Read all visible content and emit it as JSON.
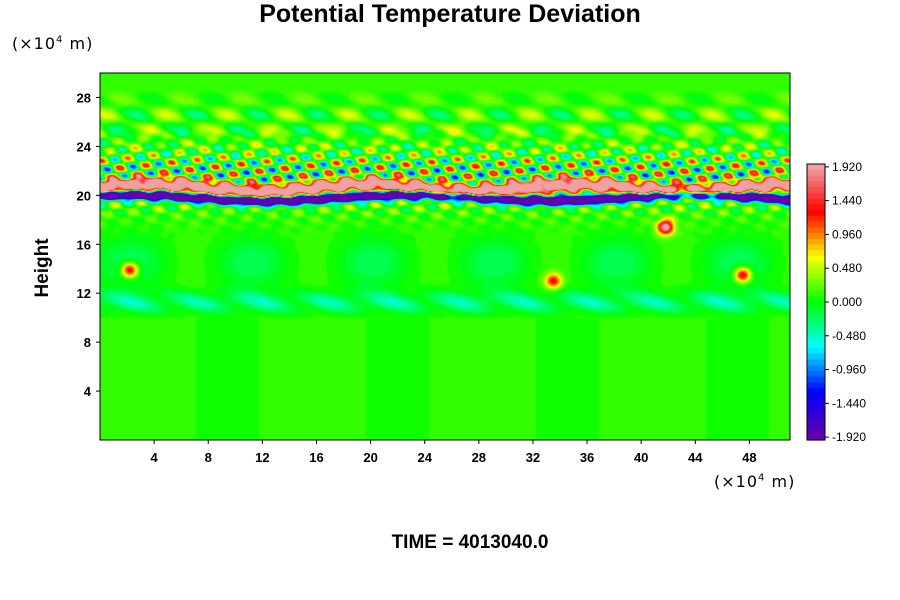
{
  "chart_data": {
    "type": "heatmap",
    "title": "Potential Temperature Deviation",
    "xlabel": "",
    "ylabel": "Height",
    "x_unit_prefix": "(×10",
    "x_unit_exp": "4",
    "x_unit_suffix": " m)",
    "y_unit_prefix": "(×10",
    "y_unit_exp": "4",
    "y_unit_suffix": " m)",
    "xlim": [
      0,
      51
    ],
    "ylim": [
      0,
      30
    ],
    "x_ticks": [
      "4",
      "8",
      "12",
      "16",
      "20",
      "24",
      "28",
      "32",
      "36",
      "40",
      "44",
      "48"
    ],
    "x_tick_values": [
      4,
      8,
      12,
      16,
      20,
      24,
      28,
      32,
      36,
      40,
      44,
      48
    ],
    "y_ticks": [
      "4",
      "8",
      "12",
      "16",
      "20",
      "24",
      "28"
    ],
    "y_tick_values": [
      4,
      8,
      12,
      16,
      20,
      24,
      28
    ],
    "colorbar": {
      "min": -1.92,
      "max": 1.92,
      "labels": [
        "1.920",
        "1.440",
        "0.960",
        "0.480",
        "0.000",
        "-0.480",
        "-0.960",
        "-1.440",
        "-1.920"
      ],
      "label_values": [
        1.92,
        1.44,
        0.96,
        0.48,
        0.0,
        -0.48,
        -0.96,
        -1.44,
        -1.92
      ],
      "colors": [
        "#6600aa",
        "#0000ff",
        "#00ffff",
        "#00ff00",
        "#ffff00",
        "#ff0000",
        "#f0a0a0"
      ]
    },
    "features": [
      {
        "name": "dark-band",
        "x_range": [
          0,
          51
        ],
        "y_center": 19.8,
        "value": -1.9
      },
      {
        "name": "light-band",
        "x_range": [
          0,
          51
        ],
        "y_center": 20.6,
        "value": 1.9
      },
      {
        "name": "wave-region",
        "x_range": [
          0,
          51
        ],
        "y_range": [
          18,
          25
        ],
        "amplitude": 1.5
      },
      {
        "name": "cool-layer",
        "x_range": [
          0,
          51
        ],
        "y_range": [
          10.5,
          12
        ],
        "value": -0.6
      },
      {
        "name": "warm-spot-1",
        "x": 41.8,
        "y": 17.4,
        "value": 1.9
      },
      {
        "name": "warm-spot-2",
        "x": 2.2,
        "y": 13.9,
        "value": 1.5
      },
      {
        "name": "warm-spot-3",
        "x": 47.5,
        "y": 13.5,
        "value": 1.5
      },
      {
        "name": "warm-spot-4",
        "x": 33.5,
        "y": 13.0,
        "value": 1.2
      }
    ]
  },
  "time_label": "TIME = 4013040.0"
}
